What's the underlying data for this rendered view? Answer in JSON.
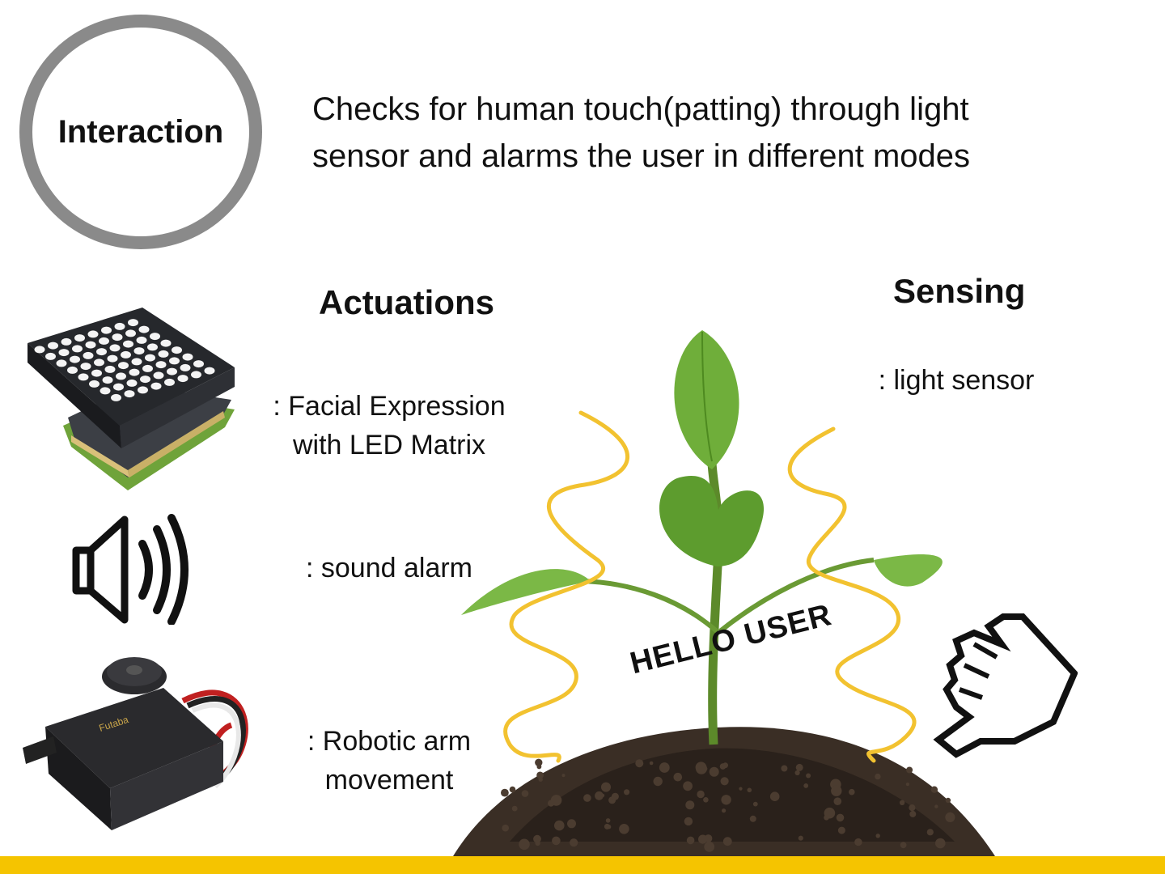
{
  "badge": {
    "label": "Interaction"
  },
  "description": {
    "line1": "Checks for human touch(patting) through light",
    "line2": "sensor and alarms the user in different modes"
  },
  "actuations": {
    "heading": "Actuations",
    "items": [
      {
        "line1": ": Facial Expression",
        "line2": "with LED Matrix",
        "icon": "led-matrix-icon"
      },
      {
        "line1": ": sound alarm",
        "icon": "speaker-icon"
      },
      {
        "line1": ": Robotic arm",
        "line2": "movement",
        "icon": "servo-motor-icon"
      }
    ]
  },
  "sensing": {
    "heading": "Sensing",
    "items": [
      {
        "line1": ": light sensor"
      }
    ]
  },
  "illustration": {
    "greeting": "HELLO USER",
    "servo_label": "Futaba",
    "icons": [
      "plant-icon",
      "pointer-hand-icon"
    ]
  },
  "colors": {
    "accent": "#f5c400",
    "wave": "#f2c230",
    "badge_ring": "#8a8a8a"
  }
}
